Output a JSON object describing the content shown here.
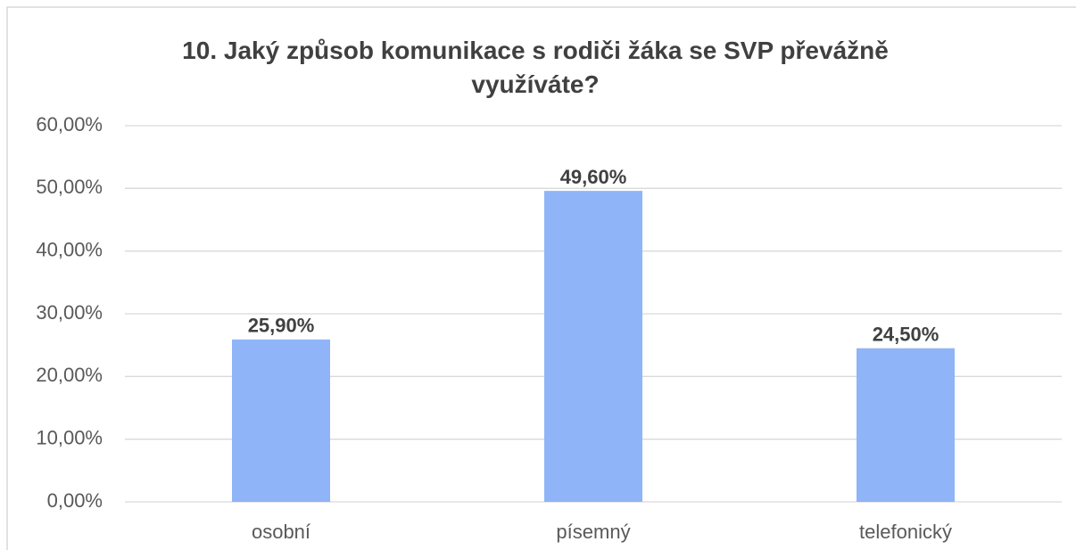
{
  "chart_data": {
    "type": "bar",
    "title": "10. Jaký způsob komunikace s rodiči žáka se SVP převážně využíváte?",
    "categories": [
      "osobní",
      "písemný",
      "telefonický"
    ],
    "values": [
      25.9,
      49.6,
      24.5
    ],
    "value_labels": [
      "25,90%",
      "49,60%",
      "24,50%"
    ],
    "color": "#8fb4f8",
    "ylim": [
      0,
      60
    ],
    "yticks": [
      {
        "value": 0,
        "label": "0,00%"
      },
      {
        "value": 10,
        "label": "10,00%"
      },
      {
        "value": 20,
        "label": "20,00%"
      },
      {
        "value": 30,
        "label": "30,00%"
      },
      {
        "value": 40,
        "label": "40,00%"
      },
      {
        "value": 50,
        "label": "50,00%"
      },
      {
        "value": 60,
        "label": "60,00%"
      }
    ],
    "grid": true
  }
}
